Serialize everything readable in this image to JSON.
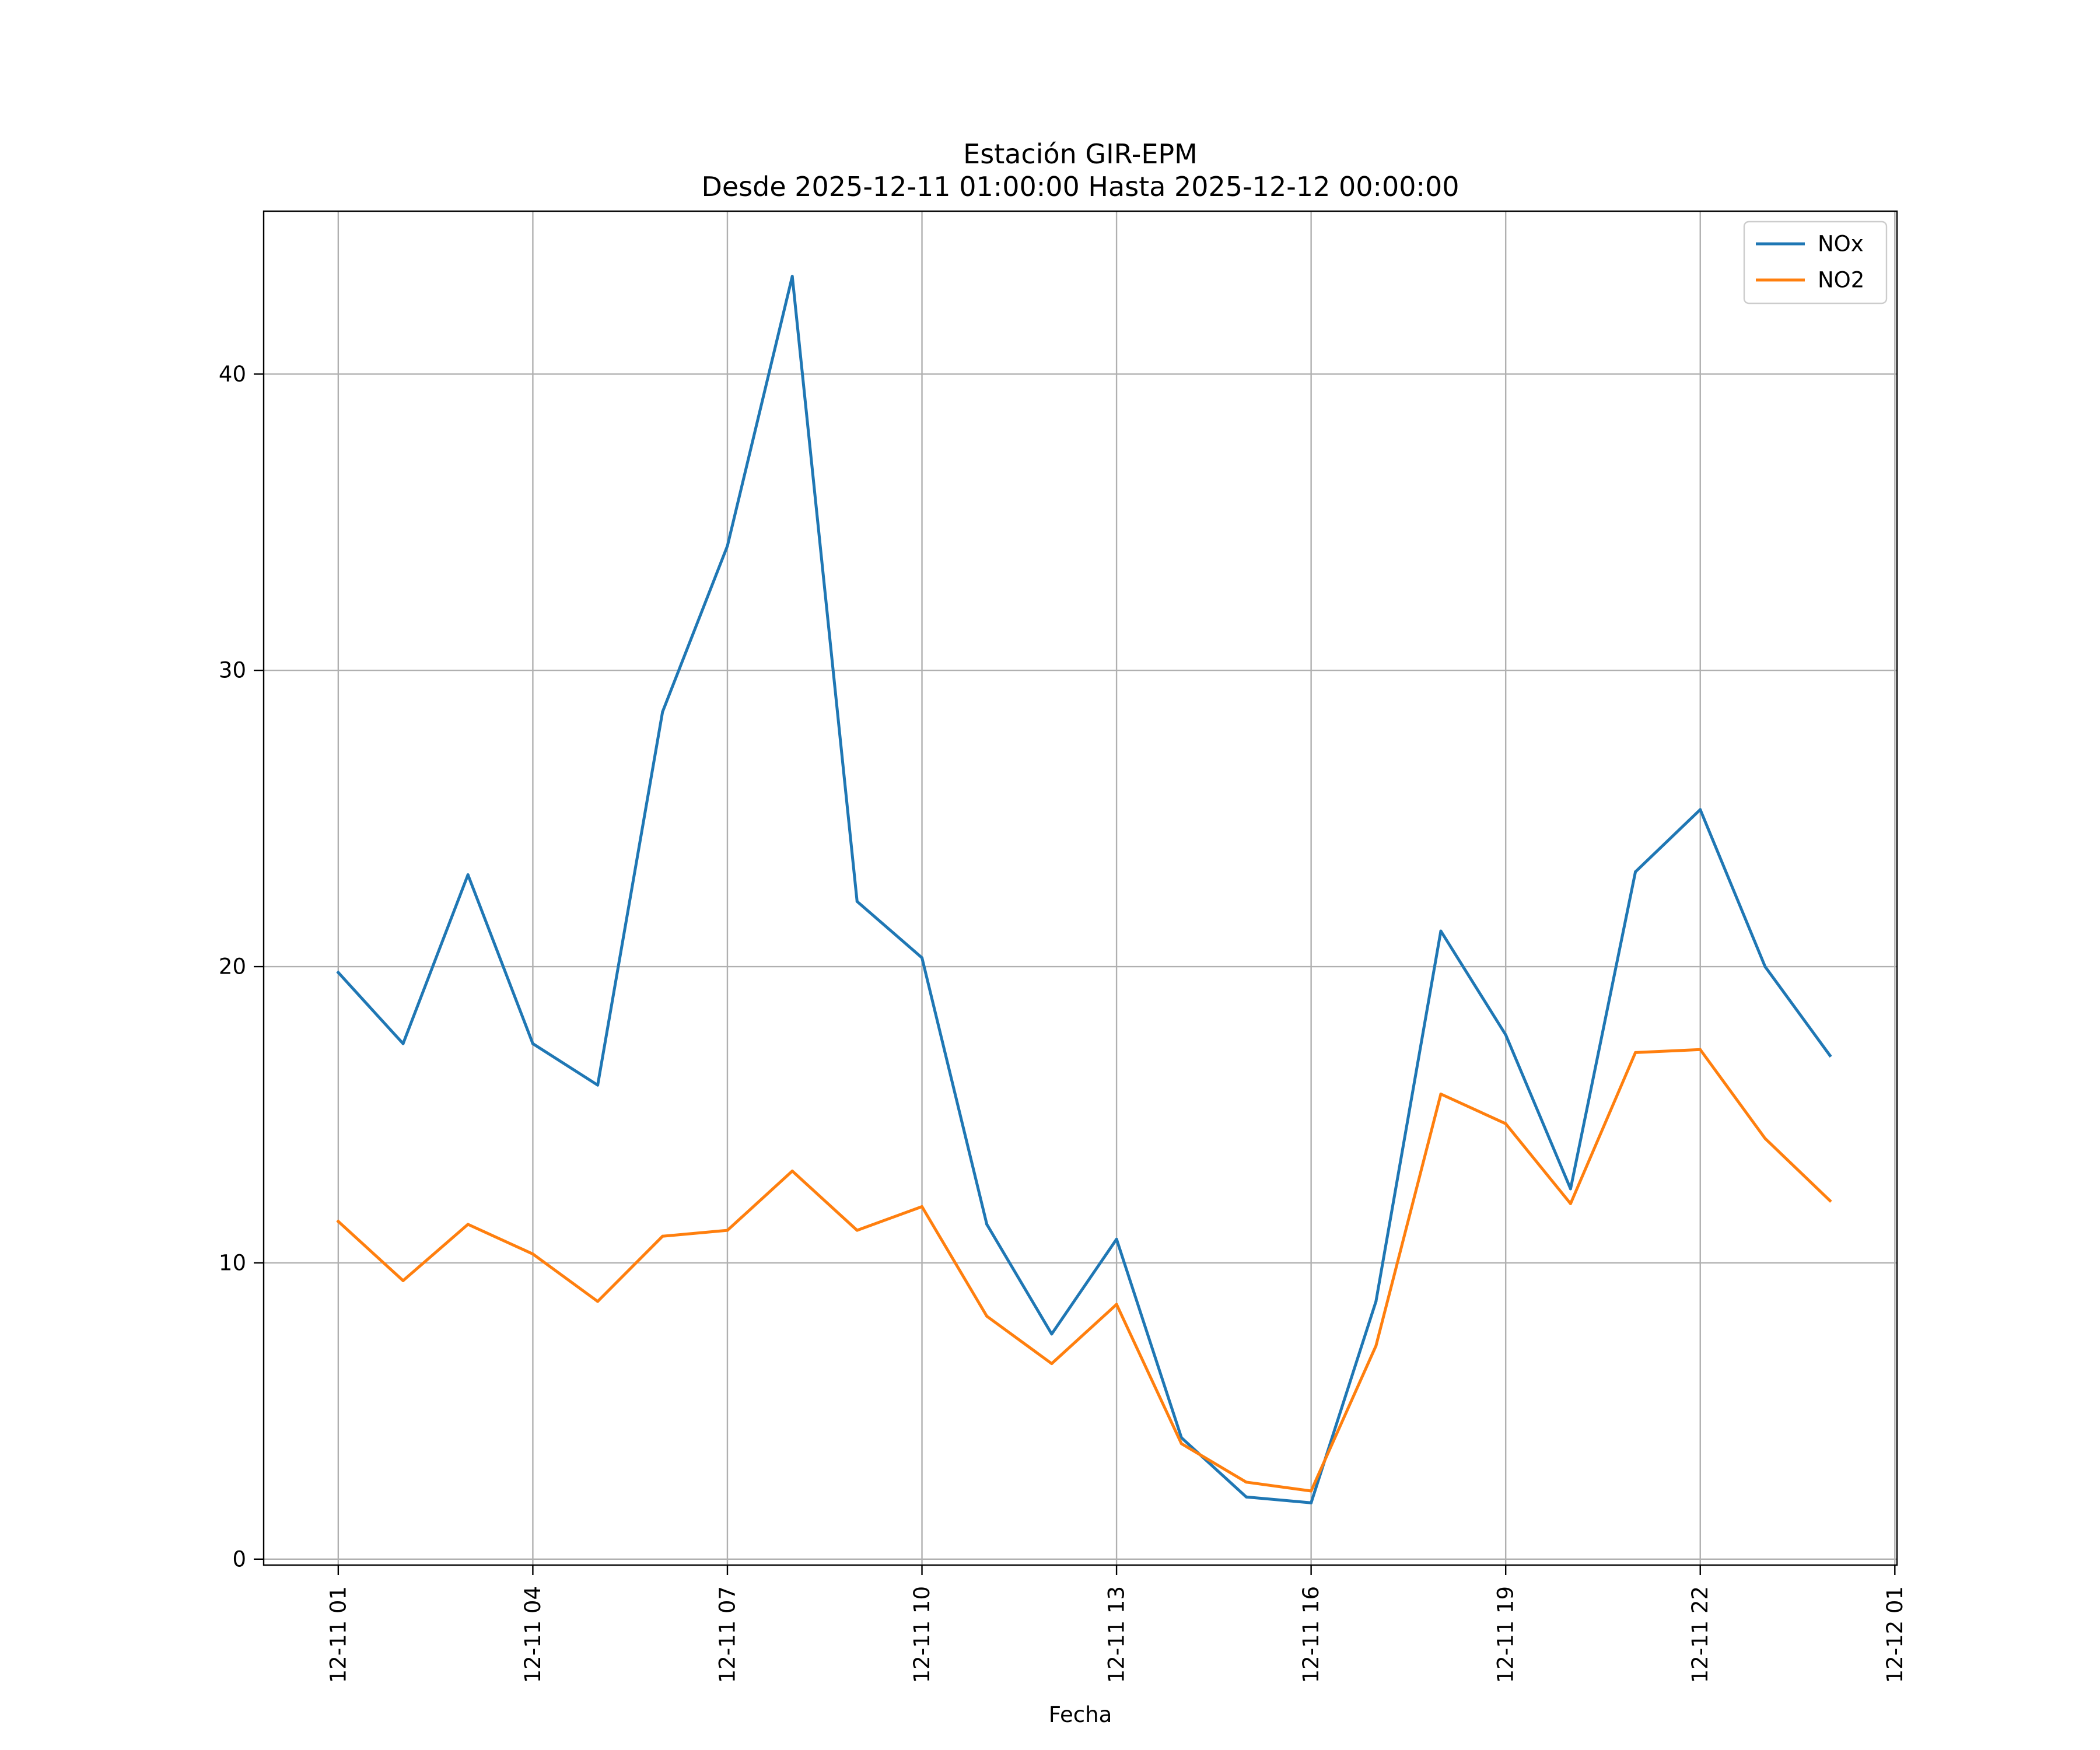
{
  "chart_data": {
    "type": "line",
    "title": "Estación GIR-EPM",
    "subtitle": "Desde 2025-12-11 01:00:00 Hasta 2025-12-12 00:00:00",
    "xlabel": "Fecha",
    "ylabel": "",
    "x": [
      "2025-12-11 01:00",
      "2025-12-11 02:00",
      "2025-12-11 03:00",
      "2025-12-11 04:00",
      "2025-12-11 05:00",
      "2025-12-11 06:00",
      "2025-12-11 07:00",
      "2025-12-11 08:00",
      "2025-12-11 09:00",
      "2025-12-11 10:00",
      "2025-12-11 11:00",
      "2025-12-11 12:00",
      "2025-12-11 13:00",
      "2025-12-11 14:00",
      "2025-12-11 15:00",
      "2025-12-11 16:00",
      "2025-12-11 17:00",
      "2025-12-11 18:00",
      "2025-12-11 19:00",
      "2025-12-11 20:00",
      "2025-12-11 21:00",
      "2025-12-11 22:00",
      "2025-12-11 23:00",
      "2025-12-12 00:00"
    ],
    "series": [
      {
        "name": "NOx",
        "color": "#1f77b4",
        "values": [
          19.8,
          17.4,
          23.1,
          17.4,
          16.0,
          28.6,
          34.2,
          43.3,
          22.2,
          20.3,
          11.3,
          7.6,
          10.8,
          4.1,
          2.1,
          1.9,
          8.7,
          21.2,
          17.7,
          12.5,
          23.2,
          25.3,
          20.0,
          17.0
        ]
      },
      {
        "name": "NO2",
        "color": "#ff7f0e",
        "values": [
          11.4,
          9.4,
          11.3,
          10.3,
          8.7,
          10.9,
          11.1,
          13.1,
          11.1,
          11.9,
          8.2,
          6.6,
          8.6,
          3.9,
          2.6,
          2.3,
          7.2,
          15.7,
          14.7,
          12.0,
          17.1,
          17.2,
          14.2,
          12.1
        ]
      }
    ],
    "xticks": [
      "12-11 01",
      "12-11 04",
      "12-11 07",
      "12-11 10",
      "12-11 13",
      "12-11 16",
      "12-11 19",
      "12-11 22",
      "12-12 01"
    ],
    "yticks": [
      0,
      10,
      20,
      30,
      40
    ],
    "ylim": [
      -0.2,
      45.5
    ],
    "xlim": [
      "2025-12-10 23:51",
      "2025-12-12 01:02"
    ],
    "grid": true,
    "legend_position": "top-right"
  }
}
